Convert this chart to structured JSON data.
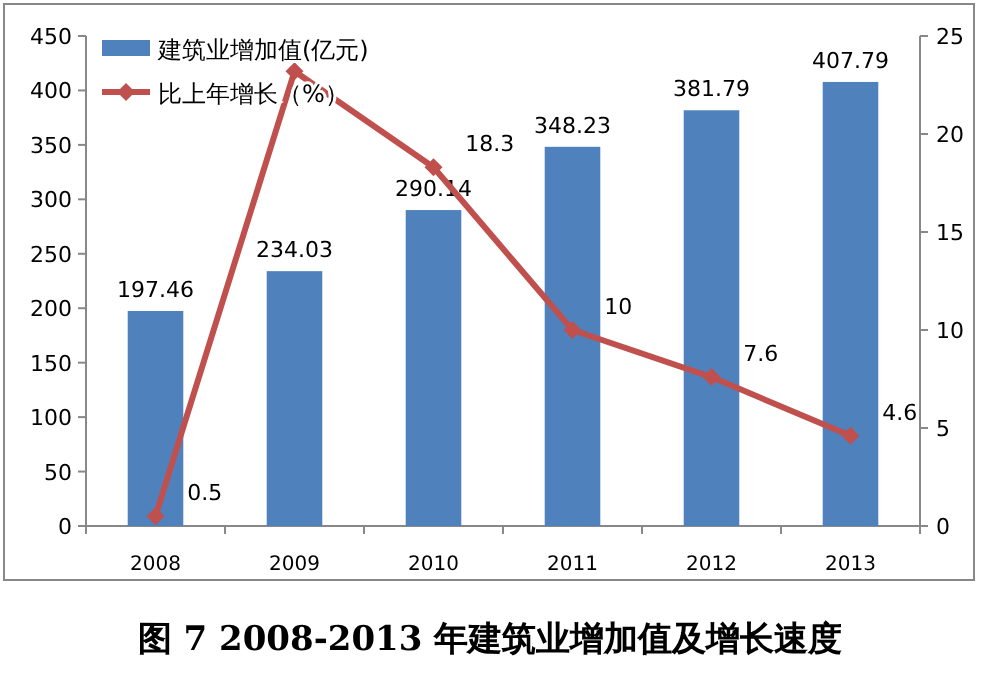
{
  "chart_data": {
    "type": "bar",
    "title": "图 7   2008-2013 年建筑业增加值及增长速度",
    "categories": [
      "2008",
      "2009",
      "2010",
      "2011",
      "2012",
      "2013"
    ],
    "series": [
      {
        "name": "建筑业增加值(亿元)",
        "color": "#4f81bd",
        "values": [
          197.46,
          234.03,
          290.14,
          348.23,
          381.79,
          407.79
        ],
        "value_labels": [
          "197.46",
          "234.03",
          "290.14",
          "348.23",
          "381.79",
          "407.79"
        ]
      },
      {
        "name": "比上年增长（%）",
        "type": "line",
        "axis": "y2",
        "color": "#c0504d",
        "marker": "diamond",
        "values": [
          0.5,
          23.2,
          18.3,
          10,
          7.6,
          4.6
        ],
        "value_labels": [
          "0.5",
          null,
          "18.3",
          "10",
          "7.6",
          "4.6"
        ]
      }
    ],
    "ylim": [
      0,
      450
    ],
    "yticks": [
      0,
      50,
      100,
      150,
      200,
      250,
      300,
      350,
      400,
      450
    ],
    "y2lim": [
      0,
      25
    ],
    "y2ticks": [
      0,
      5,
      10,
      15,
      20,
      25
    ],
    "legend": "top left",
    "grid": false
  }
}
